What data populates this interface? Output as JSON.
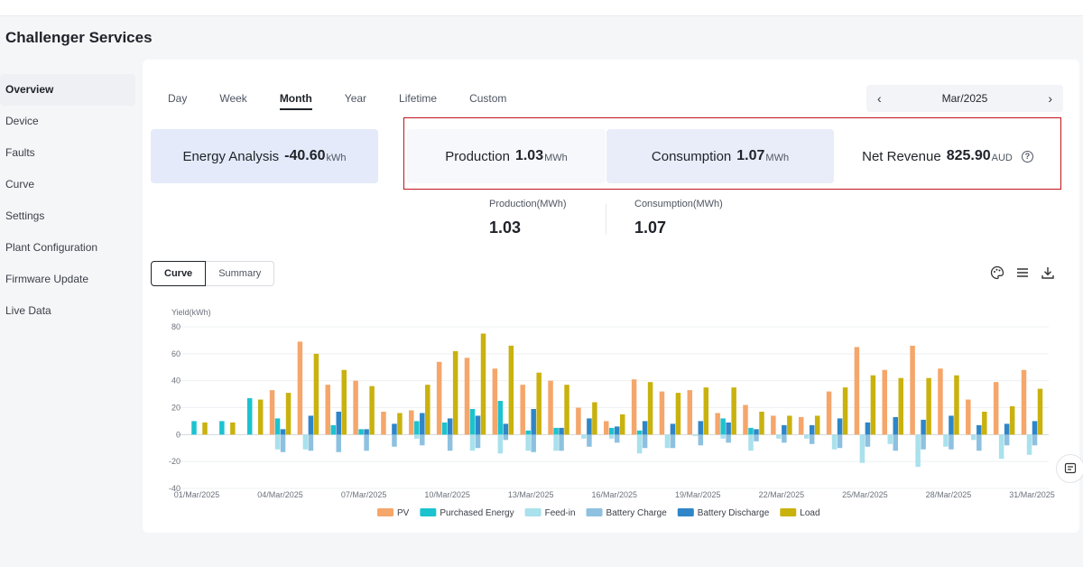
{
  "app": {
    "title": "Challenger Services"
  },
  "sidebar": {
    "items": [
      {
        "label": "Overview",
        "active": true
      },
      {
        "label": "Device"
      },
      {
        "label": "Faults"
      },
      {
        "label": "Curve"
      },
      {
        "label": "Settings"
      },
      {
        "label": "Plant Configuration"
      },
      {
        "label": "Firmware Update"
      },
      {
        "label": "Live Data"
      }
    ]
  },
  "tabs": [
    "Day",
    "Week",
    "Month",
    "Year",
    "Lifetime",
    "Custom"
  ],
  "active_tab": "Month",
  "date_picker": {
    "value": "Mar/2025",
    "prev_icon": "chevron-left-icon",
    "next_icon": "chevron-right-icon"
  },
  "cards": {
    "energy": {
      "label": "Energy Analysis",
      "value": "-40.60",
      "unit": "kWh"
    },
    "production": {
      "label": "Production",
      "value": "1.03",
      "unit": "MWh"
    },
    "consumption": {
      "label": "Consumption",
      "value": "1.07",
      "unit": "MWh"
    },
    "net_revenue": {
      "label": "Net Revenue",
      "value": "825.90",
      "unit": "AUD",
      "help": "?"
    }
  },
  "summary": {
    "production": {
      "label": "Production(MWh)",
      "value": "1.03"
    },
    "consumption": {
      "label": "Consumption(MWh)",
      "value": "1.07"
    }
  },
  "view_toggle": {
    "curve": "Curve",
    "summary": "Summary"
  },
  "tools": {
    "palette": "palette-icon",
    "menu": "menu-icon",
    "download": "download-icon"
  },
  "colors": {
    "pv": "#f5a66a",
    "purchased": "#1cc3cf",
    "feedin": "#a9e1ec",
    "charge": "#8ec1e0",
    "discharge": "#2e86c8",
    "load": "#c9b20e",
    "highlight": "#c0141b"
  },
  "chart_data": {
    "type": "bar",
    "ylabel": "Yield(kWh)",
    "ylim": [
      -40,
      80
    ],
    "yticks": [
      80,
      60,
      40,
      20,
      0,
      -20,
      -40
    ],
    "x": [
      "01/Mar/2025",
      "02/Mar/2025",
      "03/Mar/2025",
      "04/Mar/2025",
      "05/Mar/2025",
      "06/Mar/2025",
      "07/Mar/2025",
      "08/Mar/2025",
      "09/Mar/2025",
      "10/Mar/2025",
      "11/Mar/2025",
      "12/Mar/2025",
      "13/Mar/2025",
      "14/Mar/2025",
      "15/Mar/2025",
      "16/Mar/2025",
      "17/Mar/2025",
      "18/Mar/2025",
      "19/Mar/2025",
      "20/Mar/2025",
      "21/Mar/2025",
      "22/Mar/2025",
      "23/Mar/2025",
      "24/Mar/2025",
      "25/Mar/2025",
      "26/Mar/2025",
      "27/Mar/2025",
      "28/Mar/2025",
      "29/Mar/2025",
      "30/Mar/2025",
      "31/Mar/2025"
    ],
    "xtick_labels": [
      "01/Mar/2025",
      "04/Mar/2025",
      "07/Mar/2025",
      "10/Mar/2025",
      "13/Mar/2025",
      "16/Mar/2025",
      "19/Mar/2025",
      "22/Mar/2025",
      "25/Mar/2025",
      "28/Mar/2025",
      "31/Mar/2025"
    ],
    "grid": true,
    "legend_position": "bottom",
    "series": [
      {
        "name": "PV",
        "color": "#f5a66a",
        "values": [
          0,
          0,
          0,
          33,
          69,
          37,
          40,
          17,
          18,
          54,
          57,
          49,
          37,
          40,
          20,
          10,
          41,
          32,
          33,
          16,
          22,
          14,
          13,
          32,
          65,
          48,
          66,
          49,
          26,
          39,
          48
        ]
      },
      {
        "name": "Purchased Energy",
        "color": "#1cc3cf",
        "values": [
          10,
          10,
          27,
          12,
          0,
          7,
          4,
          0,
          10,
          9,
          19,
          25,
          3,
          5,
          0,
          5,
          3,
          0,
          0,
          12,
          5,
          0,
          0,
          0,
          0,
          0,
          0,
          0,
          0,
          0,
          0
        ]
      },
      {
        "name": "Feed-in",
        "color": "#a9e1ec",
        "values": [
          0,
          0,
          0,
          -11,
          -11,
          0,
          0,
          0,
          -3,
          0,
          -12,
          -14,
          -12,
          -12,
          -3,
          -3,
          -14,
          -10,
          -1,
          -3,
          -12,
          -3,
          -3,
          -11,
          -21,
          -7,
          -24,
          -9,
          -4,
          -18,
          -15
        ]
      },
      {
        "name": "Battery Charge",
        "color": "#8ec1e0",
        "values": [
          0,
          0,
          0,
          -13,
          -12,
          -13,
          -12,
          -9,
          -8,
          -12,
          -10,
          -4,
          -13,
          -12,
          -9,
          -6,
          -10,
          -10,
          -8,
          -6,
          -5,
          -6,
          -7,
          -10,
          -9,
          -12,
          -11,
          -11,
          -12,
          -8,
          -8
        ]
      },
      {
        "name": "Battery Discharge",
        "color": "#2e86c8",
        "values": [
          0,
          0,
          0,
          4,
          14,
          17,
          4,
          8,
          16,
          12,
          14,
          8,
          19,
          5,
          12,
          6,
          10,
          8,
          10,
          9,
          4,
          7,
          7,
          12,
          9,
          13,
          11,
          14,
          7,
          8,
          10
        ]
      },
      {
        "name": "Load",
        "color": "#c9b20e",
        "values": [
          9,
          9,
          26,
          31,
          60,
          48,
          36,
          16,
          37,
          62,
          75,
          66,
          46,
          37,
          24,
          15,
          39,
          31,
          35,
          35,
          17,
          14,
          14,
          35,
          44,
          42,
          42,
          44,
          17,
          21,
          34
        ]
      }
    ]
  }
}
